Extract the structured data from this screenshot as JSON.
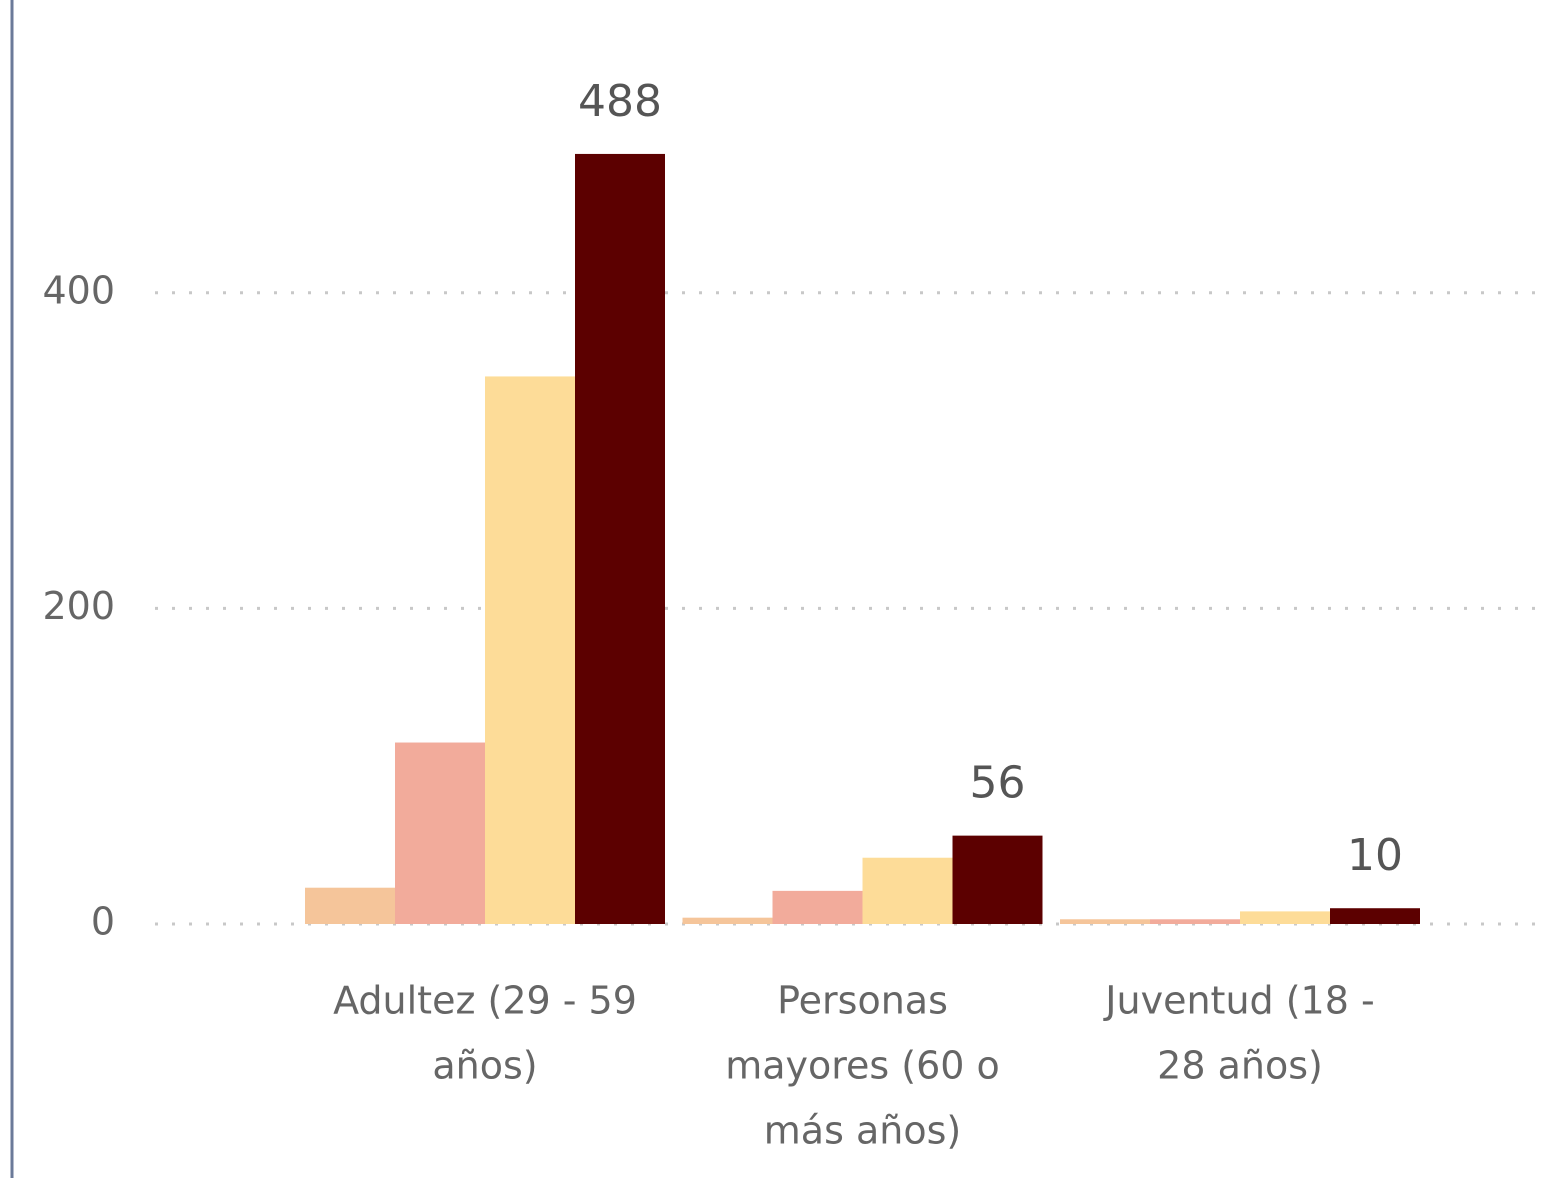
{
  "chart_data": {
    "type": "bar",
    "categories": [
      [
        "Adultez (29 - 59",
        "años)"
      ],
      [
        "Personas",
        "mayores (60 o",
        "más años)"
      ],
      [
        "Juventud (18 -",
        "28 años)"
      ]
    ],
    "series": [
      {
        "color": "#f5c59a",
        "values": [
          23,
          4,
          3
        ]
      },
      {
        "color": "#f2ab9b",
        "values": [
          115,
          21,
          3
        ]
      },
      {
        "color": "#fddc98",
        "values": [
          347,
          42,
          8
        ]
      },
      {
        "color": "#5c0000",
        "values": [
          488,
          56,
          10
        ],
        "data_labels": true
      }
    ],
    "ylim": [
      0,
      500
    ],
    "yticks": [
      0,
      200,
      400
    ],
    "grid": true
  }
}
